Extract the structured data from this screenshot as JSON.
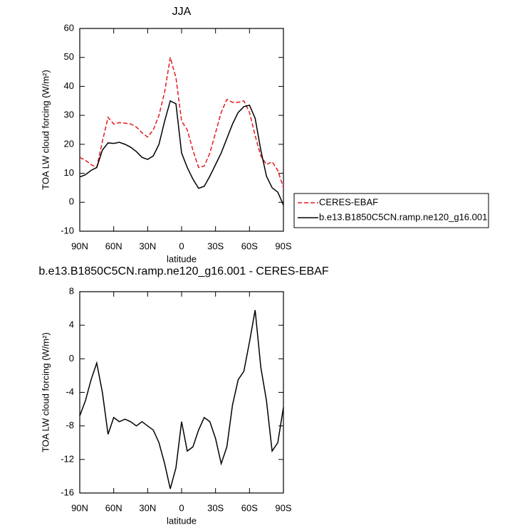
{
  "chart_data": [
    {
      "type": "line",
      "title": "JJA",
      "xlabel": "latitude",
      "ylabel": "TOA LW cloud forcing (W/m²)",
      "x": [
        90,
        85,
        80,
        75,
        70,
        65,
        60,
        55,
        50,
        45,
        40,
        35,
        30,
        25,
        20,
        15,
        10,
        5,
        0,
        -5,
        -10,
        -15,
        -20,
        -25,
        -30,
        -35,
        -40,
        -45,
        -50,
        -55,
        -60,
        -65,
        -70,
        -75,
        -80,
        -85,
        -90
      ],
      "series": [
        {
          "name": "CERES-EBAF",
          "color": "#e41a1c",
          "line_style": "dashed",
          "values": [
            15.5,
            14.5,
            13,
            12,
            21,
            29.3,
            27,
            27.5,
            27.3,
            27,
            26,
            24,
            22.5,
            25,
            30,
            38,
            50,
            43,
            28,
            25,
            18,
            12,
            12.5,
            17,
            24,
            31,
            35.5,
            34.5,
            34.5,
            35,
            31,
            23,
            16,
            13,
            14,
            11,
            5
          ]
        },
        {
          "name": "b.e13.B1850C5CN.ramp.ne120_g16.001",
          "color": "#000000",
          "line_style": "solid",
          "values": [
            8.7,
            9.5,
            11,
            12,
            18,
            20.5,
            20.3,
            20.7,
            20,
            19,
            17.5,
            15.5,
            14.8,
            16,
            20,
            28,
            35,
            34,
            17,
            12,
            8,
            4.8,
            5.5,
            9,
            13,
            17,
            22,
            27,
            31,
            33,
            33.5,
            29,
            18,
            9,
            5,
            3.5,
            -1
          ]
        }
      ],
      "xlim": [
        90,
        -90
      ],
      "xticks": [
        {
          "value": 90,
          "label": "90N"
        },
        {
          "value": 60,
          "label": "60N"
        },
        {
          "value": 30,
          "label": "30N"
        },
        0,
        {
          "value": -30,
          "label": "30S"
        },
        {
          "value": -60,
          "label": "60S"
        },
        {
          "value": -90,
          "label": "90S"
        }
      ],
      "ylim": [
        -10,
        60
      ],
      "yticks": [
        -10,
        0,
        10,
        20,
        30,
        40,
        50,
        60
      ],
      "legend": "right"
    },
    {
      "type": "line",
      "title": "b.e13.B1850C5CN.ramp.ne120_g16.001 - CERES-EBAF",
      "xlabel": "latitude",
      "ylabel": "TOA LW cloud forcing (W/m²)",
      "x": [
        90,
        85,
        80,
        75,
        70,
        65,
        60,
        55,
        50,
        45,
        40,
        35,
        30,
        25,
        20,
        15,
        10,
        5,
        0,
        -5,
        -10,
        -15,
        -20,
        -25,
        -30,
        -35,
        -40,
        -45,
        -50,
        -55,
        -60,
        -65,
        -70,
        -75,
        -80,
        -85,
        -90
      ],
      "color": "#000000",
      "values": [
        -6.8,
        -5,
        -2.5,
        -0.5,
        -4,
        -9,
        -7,
        -7.5,
        -7.2,
        -7.5,
        -8,
        -7.5,
        -8,
        -8.5,
        -10,
        -12.5,
        -15.5,
        -13,
        -7.5,
        -11,
        -10.5,
        -8.5,
        -7,
        -7.5,
        -9.5,
        -12.5,
        -10.5,
        -5.5,
        -2.5,
        -1.5,
        2,
        5.8,
        -1,
        -5,
        -11,
        -10,
        -5.8
      ],
      "xlim": [
        90,
        -90
      ],
      "xticks": [
        {
          "value": 90,
          "label": "90N"
        },
        {
          "value": 60,
          "label": "60N"
        },
        {
          "value": 30,
          "label": "30N"
        },
        0,
        {
          "value": -30,
          "label": "30S"
        },
        {
          "value": -60,
          "label": "60S"
        },
        {
          "value": -90,
          "label": "90S"
        }
      ],
      "ylim": [
        -16,
        8
      ],
      "yticks": [
        -16,
        -12,
        -8,
        -4,
        0,
        4,
        8
      ]
    }
  ]
}
